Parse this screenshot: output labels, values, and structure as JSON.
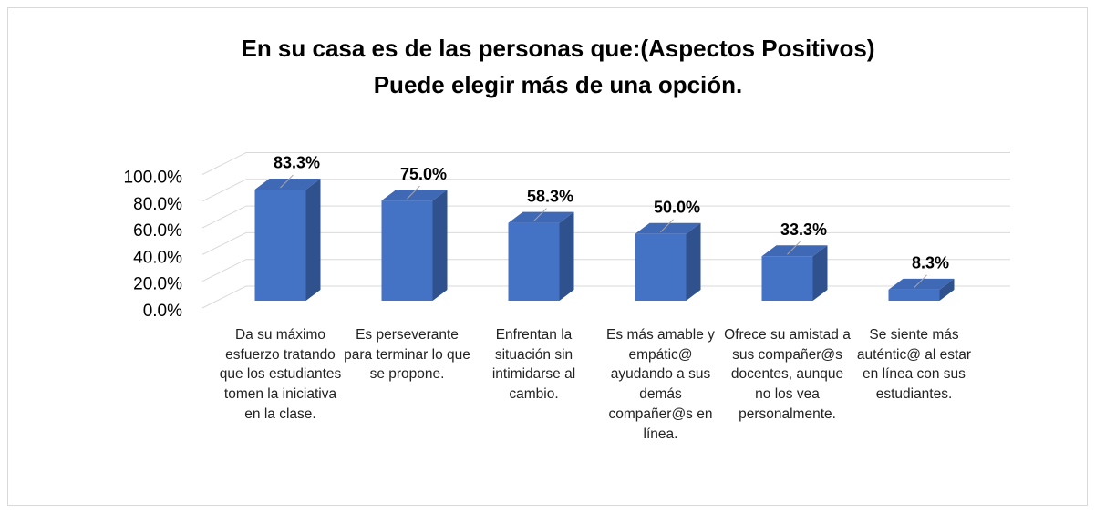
{
  "chart_data": {
    "type": "bar3d",
    "title": "En su casa es de las personas que:(Aspectos Positivos)",
    "subtitle": "Puede elegir más de una opción.",
    "categories": [
      "Da su máximo esfuerzo tratando que los estudiantes tomen la iniciativa en la clase.",
      "Es perseverante para terminar lo que se propone.",
      "Enfrentan la situación sin intimidarse al cambio.",
      "Es más amable y empátic@ ayudando a sus demás compañer@s en línea.",
      "Ofrece su amistad a sus compañer@s docentes, aunque no los vea personalmente.",
      "Se siente más auténtic@ al estar en línea con sus estudiantes."
    ],
    "values": [
      83.3,
      75.0,
      58.3,
      50.0,
      33.3,
      8.3
    ],
    "value_labels": [
      "83.3%",
      "75.0%",
      "58.3%",
      "50.0%",
      "33.3%",
      "8.3%"
    ],
    "color": "#4472c4",
    "ylim": [
      0,
      100
    ],
    "yticks": [
      {
        "value": 0,
        "label": "0.0%"
      },
      {
        "value": 20,
        "label": "20.0%"
      },
      {
        "value": 40,
        "label": "40.0%"
      },
      {
        "value": 60,
        "label": "60.0%"
      },
      {
        "value": 80,
        "label": "80.0%"
      },
      {
        "value": 100,
        "label": "100.0%"
      }
    ],
    "grid": true
  }
}
